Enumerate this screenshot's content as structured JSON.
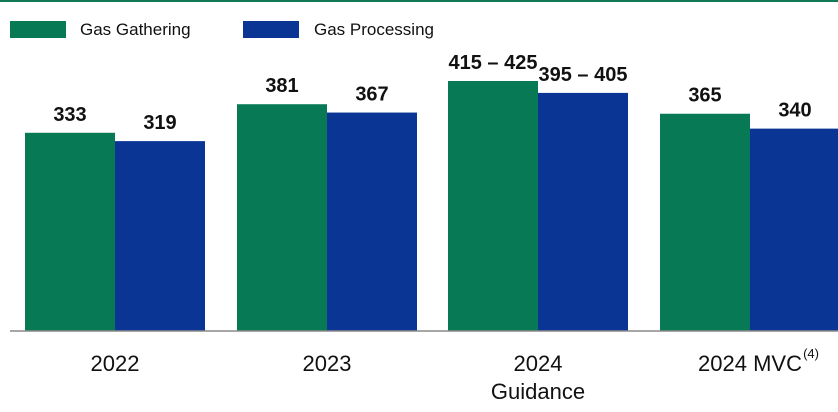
{
  "colors": {
    "top_rule": "#0f7a54",
    "gathering": "#077a55",
    "processing": "#0a3594",
    "axis": "#8a8a8a"
  },
  "chart_data": {
    "type": "bar",
    "series": [
      {
        "name": "Gas Gathering",
        "values": [
          333,
          381,
          420,
          365
        ],
        "labels": [
          "333",
          "381",
          "415 – 425",
          "365"
        ]
      },
      {
        "name": "Gas Processing",
        "values": [
          319,
          367,
          400,
          340
        ],
        "labels": [
          "319",
          "367",
          "395 – 405",
          "340"
        ]
      }
    ],
    "categories": [
      {
        "line1": "2022",
        "line2": "",
        "sup": ""
      },
      {
        "line1": "2023",
        "line2": "",
        "sup": ""
      },
      {
        "line1": "2024",
        "line2": "Guidance",
        "sup": ""
      },
      {
        "line1": "2024 MVC",
        "line2": "",
        "sup": "(4)"
      }
    ],
    "ylim": [
      0,
      420
    ],
    "grid": false,
    "legend_position": "top-left"
  }
}
